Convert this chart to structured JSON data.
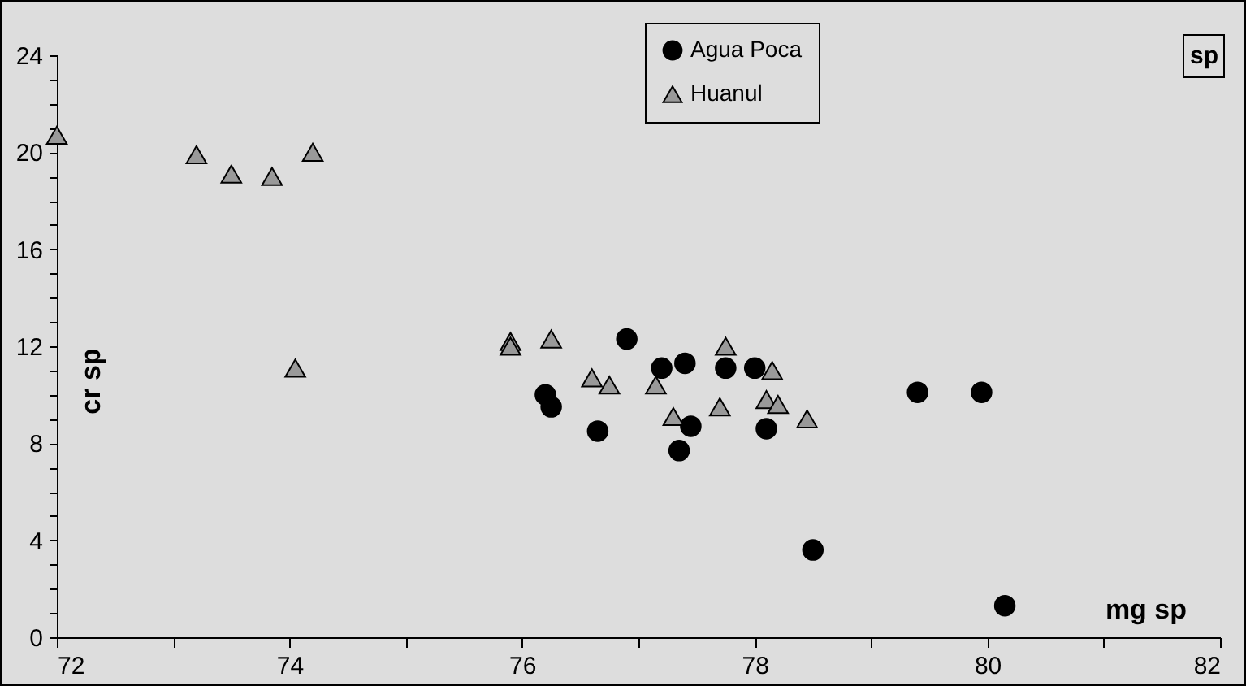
{
  "chart_data": {
    "type": "scatter",
    "xlabel": "mg sp",
    "ylabel": "cr sp",
    "annotations": [
      "sp"
    ],
    "xlim": [
      72,
      82
    ],
    "ylim": [
      0,
      24
    ],
    "xticks": [
      72,
      {
        "value": 73,
        "label": null
      },
      74,
      {
        "value": 75,
        "label": null
      },
      76,
      {
        "value": 77,
        "label": null
      },
      78,
      {
        "value": 79,
        "label": null
      },
      80,
      {
        "value": 81,
        "label": null
      },
      82
    ],
    "yticks": [
      0,
      {
        "value": 1,
        "label": null
      },
      {
        "value": 2,
        "label": null
      },
      {
        "value": 3,
        "label": null
      },
      4,
      {
        "value": 5,
        "label": null
      },
      {
        "value": 6,
        "label": null
      },
      {
        "value": 7,
        "label": null
      },
      8,
      {
        "value": 9,
        "label": null
      },
      {
        "value": 10,
        "label": null
      },
      {
        "value": 11,
        "label": null
      },
      12,
      {
        "value": 13,
        "label": null
      },
      {
        "value": 14,
        "label": null
      },
      {
        "value": 15,
        "label": null
      },
      16,
      {
        "value": 17,
        "label": null
      },
      {
        "value": 18,
        "label": null
      },
      {
        "value": 19,
        "label": null
      },
      20,
      {
        "value": 21,
        "label": null
      },
      {
        "value": 22,
        "label": null
      },
      {
        "value": 23,
        "label": null
      },
      24
    ],
    "legend": "top right",
    "series": [
      {
        "name": "Agua Poca",
        "color": "#000000",
        "marker": "circle",
        "x": [
          76.2,
          76.25,
          76.65,
          76.9,
          77.2,
          77.4,
          77.45,
          77.35,
          77.75,
          78.0,
          78.1,
          78.5,
          79.4,
          79.95,
          80.15
        ],
        "values": [
          10.0,
          9.5,
          8.5,
          12.3,
          11.1,
          11.3,
          8.7,
          7.7,
          11.1,
          11.1,
          8.6,
          3.6,
          10.1,
          10.1,
          1.3
        ]
      },
      {
        "name": "Huanul",
        "color": "#999999",
        "marker": "triangle",
        "x": [
          72.0,
          73.2,
          73.5,
          73.85,
          74.2,
          74.05,
          75.9,
          75.9,
          76.25,
          76.6,
          76.75,
          77.15,
          77.3,
          77.7,
          77.75,
          78.1,
          78.15,
          78.2,
          78.45
        ],
        "values": [
          20.7,
          19.9,
          19.1,
          19.0,
          20.0,
          11.1,
          12.2,
          12.0,
          12.3,
          10.7,
          10.4,
          10.4,
          9.1,
          9.5,
          12.0,
          9.8,
          11.0,
          9.6,
          9.0
        ]
      }
    ]
  }
}
